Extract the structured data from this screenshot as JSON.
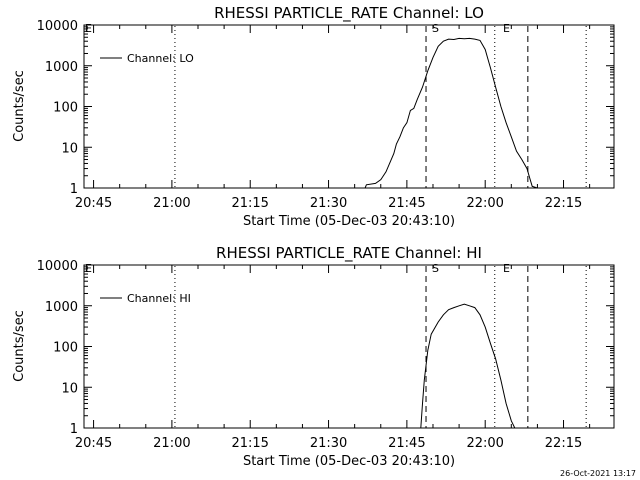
{
  "chart_data": [
    {
      "type": "line",
      "title": "RHESSI PARTICLE_RATE Channel: LO",
      "xlabel": "Start Time (05-Dec-03 20:43:10)",
      "ylabel": "Counts/sec",
      "y_scale": "log",
      "ylim": [
        1,
        10000
      ],
      "xlim": [
        "20:43:10",
        "22:24:40"
      ],
      "x_ticks": [
        "20:45",
        "21:00",
        "21:15",
        "21:30",
        "21:45",
        "22:00",
        "22:15"
      ],
      "y_ticks": [
        "1",
        "10",
        "100",
        "1000",
        "10000"
      ],
      "legend": "Channel: LO",
      "legend_position": "upper-left",
      "markers": {
        "start": "S",
        "end": "E",
        "left_edge": "E"
      },
      "vlines": [
        {
          "time": "21:00:35",
          "style": "dotted"
        },
        {
          "time": "21:48:40",
          "style": "dashed"
        },
        {
          "time": "22:01:50",
          "style": "dotted"
        },
        {
          "time": "22:08:10",
          "style": "dashed"
        },
        {
          "time": "22:19:20",
          "style": "dotted"
        }
      ],
      "series": [
        {
          "name": "Channel: LO",
          "x": [
            "21:37:00",
            "21:37:15",
            "21:39:00",
            "21:40:00",
            "21:41:00",
            "21:42:30",
            "21:43:00",
            "21:43:40",
            "21:44:20",
            "21:45:00",
            "21:45:40",
            "21:46:20",
            "21:47:00",
            "21:48:00",
            "21:49:00",
            "21:50:00",
            "21:51:00",
            "21:52:00",
            "21:53:00",
            "21:54:00",
            "21:55:00",
            "21:56:00",
            "21:57:00",
            "21:58:00",
            "21:59:00",
            "22:00:00",
            "22:00:30",
            "22:01:00",
            "22:02:00",
            "22:03:00",
            "22:04:00",
            "22:05:00",
            "22:06:00",
            "22:07:00",
            "22:08:00",
            "22:08:30",
            "22:09:00",
            "22:10:00"
          ],
          "y": [
            1,
            1.2,
            1.3,
            1.6,
            2.5,
            7,
            12,
            18,
            30,
            40,
            80,
            90,
            150,
            300,
            750,
            1600,
            3000,
            4000,
            4500,
            4400,
            4700,
            4600,
            4700,
            4500,
            4200,
            2500,
            1500,
            900,
            300,
            100,
            40,
            18,
            8,
            5,
            3,
            1.8,
            1.1,
            1
          ]
        }
      ]
    },
    {
      "type": "line",
      "title": "RHESSI PARTICLE_RATE Channel: HI",
      "xlabel": "Start Time (05-Dec-03 20:43:10)",
      "ylabel": "Counts/sec",
      "y_scale": "log",
      "ylim": [
        1,
        10000
      ],
      "xlim": [
        "20:43:10",
        "22:24:40"
      ],
      "x_ticks": [
        "20:45",
        "21:00",
        "21:15",
        "21:30",
        "21:45",
        "22:00",
        "22:15"
      ],
      "y_ticks": [
        "1",
        "10",
        "100",
        "1000",
        "10000"
      ],
      "legend": "Channel: HI",
      "legend_position": "upper-left",
      "markers": {
        "start": "S",
        "end": "E",
        "left_edge": "E"
      },
      "vlines": [
        {
          "time": "21:00:35",
          "style": "dotted"
        },
        {
          "time": "21:48:40",
          "style": "dashed"
        },
        {
          "time": "22:01:50",
          "style": "dotted"
        },
        {
          "time": "22:08:10",
          "style": "dashed"
        },
        {
          "time": "22:19:20",
          "style": "dotted"
        }
      ],
      "series": [
        {
          "name": "Channel: HI",
          "x": [
            "21:47:40",
            "21:48:00",
            "21:48:20",
            "21:49:00",
            "21:49:40",
            "21:51:00",
            "21:52:00",
            "21:53:00",
            "21:54:00",
            "21:55:00",
            "21:56:00",
            "21:57:00",
            "21:58:00",
            "21:59:00",
            "22:00:00",
            "22:01:00",
            "22:02:00",
            "22:03:00",
            "22:04:00",
            "22:05:00",
            "22:05:40"
          ],
          "y": [
            1,
            4,
            15,
            80,
            200,
            400,
            600,
            800,
            900,
            1000,
            1100,
            1000,
            900,
            600,
            300,
            120,
            50,
            15,
            4,
            1.5,
            1
          ]
        }
      ]
    }
  ],
  "timestamp": "26-Oct-2021 13:17"
}
